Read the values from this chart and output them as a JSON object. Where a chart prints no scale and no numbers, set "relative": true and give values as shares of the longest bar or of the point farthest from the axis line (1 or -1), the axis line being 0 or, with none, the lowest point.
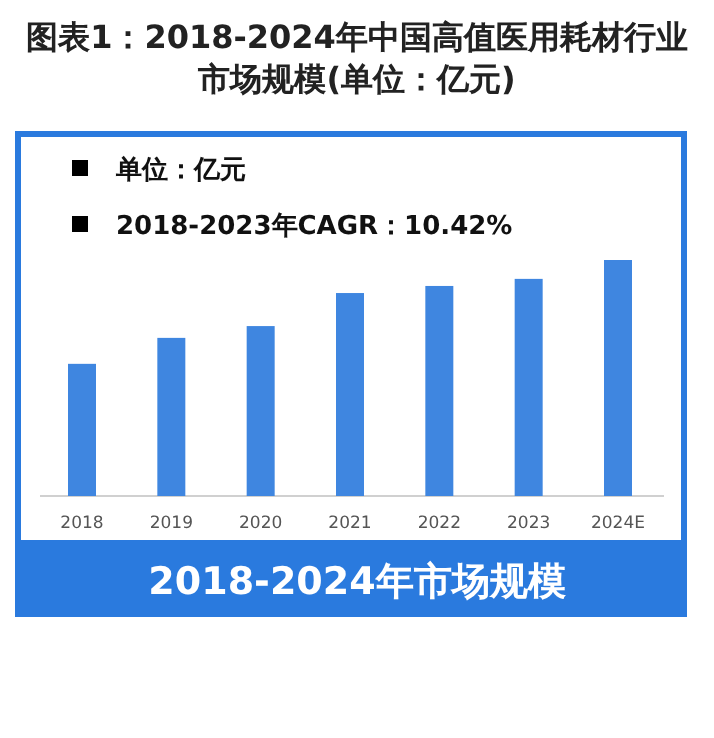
{
  "chart_data": {
    "type": "bar",
    "relative": true,
    "title": "图表1：2018-2024年中国高值医用耗材行业市场规模(单位：亿元)",
    "subtitle": "2018-2024年市场规模",
    "annotations": [
      "单位：亿元",
      "2018-2023年CAGR：10.42%"
    ],
    "categories": [
      "2018",
      "2019",
      "2020",
      "2021",
      "2022",
      "2023",
      "2024E"
    ],
    "values": [
      0.56,
      0.67,
      0.72,
      0.86,
      0.89,
      0.92,
      1
    ],
    "color": "#3f86e0"
  }
}
